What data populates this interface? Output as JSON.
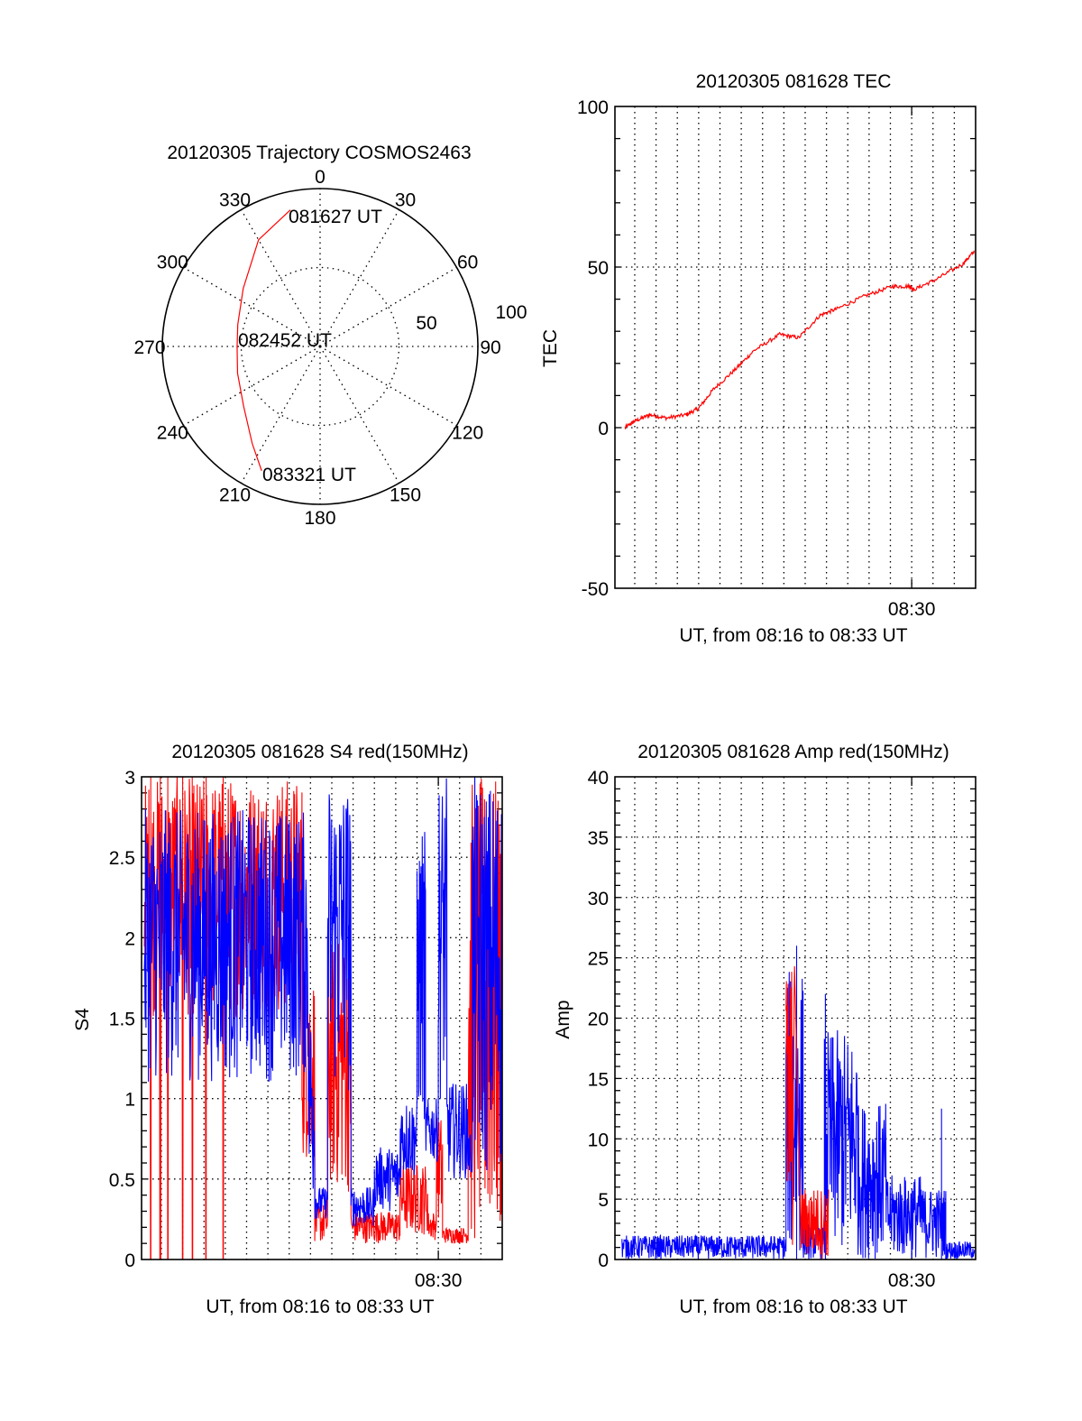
{
  "chart_data": [
    {
      "type": "polar",
      "title": "20120305 Trajectory COSMOS2463",
      "azimuth_labels": [
        "0",
        "30",
        "60",
        "90",
        "120",
        "150",
        "180",
        "210",
        "240",
        "270",
        "300",
        "330"
      ],
      "radius_labels": [
        "50",
        "100"
      ],
      "radius_range": [
        0,
        100
      ],
      "rings": [
        50,
        100
      ],
      "trajectory": [
        {
          "az": 347.7,
          "r": 88.5
        },
        {
          "az": 330,
          "r": 78
        },
        {
          "az": 307,
          "r": 61
        },
        {
          "az": 285,
          "r": 54
        },
        {
          "az": 270,
          "r": 52.6
        },
        {
          "az": 252,
          "r": 55
        },
        {
          "az": 232,
          "r": 61.5
        },
        {
          "az": 215,
          "r": 75
        },
        {
          "az": 205.2,
          "r": 87
        }
      ],
      "annotations": [
        "081627 UT",
        "082452 UT",
        "083321 UT"
      ],
      "color": "#ff0000"
    },
    {
      "type": "line",
      "title": "20120305 081628 TEC",
      "xlabel": "UT, from 08:16 to 08:33 UT",
      "ylabel": "TEC",
      "x_unit": "minutes after 08:16",
      "xlim": [
        0.07,
        17.0
      ],
      "ylim": [
        -50,
        100
      ],
      "yticks": [
        "-50",
        "0",
        "50",
        "100"
      ],
      "xtick_label": "08:30",
      "xtick_value": 14,
      "series": [
        {
          "name": "TEC",
          "color": "#ff0000",
          "x": [
            0.54,
            1.0,
            1.7,
            2.5,
            3.4,
            4.0,
            4.7,
            5.7,
            6.6,
            7.8,
            8.7,
            9.7,
            10.5,
            11.8,
            13.1,
            13.9,
            14.1,
            15.1,
            16.4,
            16.95
          ],
          "y": [
            0,
            2,
            4,
            3,
            4,
            6,
            12,
            18,
            24,
            29,
            28,
            35,
            37,
            41,
            44,
            44,
            43,
            46,
            51,
            55
          ]
        }
      ]
    },
    {
      "type": "line",
      "title": "20120305 081628 S4 red(150MHz)",
      "xlabel": "UT, from 08:16 to 08:33 UT",
      "ylabel": "S4",
      "xlim": [
        0.07,
        17.0
      ],
      "ylim": [
        0,
        3
      ],
      "yticks": [
        "0",
        "0.5",
        "1",
        "1.5",
        "2",
        "2.5",
        "3"
      ],
      "xtick_label": "08:30",
      "xtick_value": 14,
      "series": [
        {
          "name": "red",
          "color": "#ff0000",
          "envelope": [
            [
              0.2,
              7.6,
              1.5,
              3.0
            ],
            [
              7.6,
              8.2,
              0.6,
              1.8
            ],
            [
              8.2,
              8.8,
              0.1,
              0.35
            ],
            [
              8.8,
              9.9,
              0.4,
              2.0
            ],
            [
              9.9,
              12.2,
              0.1,
              0.3
            ],
            [
              12.2,
              13.5,
              0.15,
              0.6
            ],
            [
              13.5,
              13.9,
              0.12,
              0.3
            ],
            [
              13.9,
              14.2,
              0.2,
              0.9
            ],
            [
              14.2,
              15.4,
              0.1,
              0.2
            ],
            [
              15.4,
              17.0,
              0.0,
              3.0
            ]
          ],
          "dropouts": [
            0.5,
            0.95,
            1.3,
            2.0,
            2.45,
            3.1,
            3.9
          ]
        },
        {
          "name": "blue",
          "color": "#0000ff",
          "envelope": [
            [
              0.2,
              7.9,
              1.1,
              2.8
            ],
            [
              7.9,
              8.2,
              0.3,
              1.6
            ],
            [
              8.2,
              8.8,
              0.25,
              0.45
            ],
            [
              8.8,
              9.9,
              1.0,
              3.0
            ],
            [
              9.9,
              11.0,
              0.2,
              0.45
            ],
            [
              11.0,
              12.2,
              0.3,
              0.7
            ],
            [
              12.2,
              13.0,
              0.5,
              1.0
            ],
            [
              13.0,
              13.4,
              0.8,
              2.7
            ],
            [
              13.4,
              14.0,
              0.6,
              1.0
            ],
            [
              14.0,
              14.4,
              1.0,
              3.0
            ],
            [
              14.4,
              15.4,
              0.5,
              1.1
            ],
            [
              15.4,
              15.6,
              0.5,
              0.8
            ],
            [
              15.6,
              17.0,
              0.5,
              3.0
            ]
          ]
        }
      ]
    },
    {
      "type": "line",
      "title": "20120305 081628 Amp red(150MHz)",
      "xlabel": "UT, from 08:16 to 08:33 UT",
      "ylabel": "Amp",
      "xlim": [
        0.07,
        17.0
      ],
      "ylim": [
        0,
        40
      ],
      "yticks": [
        "0",
        "5",
        "10",
        "15",
        "20",
        "25",
        "30",
        "35",
        "40"
      ],
      "xtick_label": "08:30",
      "xtick_value": 14,
      "series": [
        {
          "name": "blue",
          "color": "#0000ff",
          "envelope": [
            [
              0.4,
              8.1,
              0,
              2
            ],
            [
              8.1,
              8.9,
              0,
              24
            ],
            [
              8.9,
              9.9,
              0,
              3
            ],
            [
              9.9,
              11.5,
              0,
              19
            ],
            [
              11.5,
              12.8,
              0,
              13
            ],
            [
              12.8,
              14.5,
              0,
              7
            ],
            [
              14.5,
              15.6,
              0,
              6
            ],
            [
              15.6,
              16.95,
              0,
              1.5
            ]
          ],
          "spikes": [
            [
              15.4,
              12.5
            ],
            [
              8.6,
              26
            ],
            [
              9.95,
              22
            ]
          ]
        },
        {
          "name": "red",
          "color": "#ff0000",
          "envelope": [
            [
              8.1,
              8.5,
              0,
              25
            ],
            [
              8.8,
              10.1,
              0,
              6
            ]
          ]
        }
      ]
    }
  ]
}
